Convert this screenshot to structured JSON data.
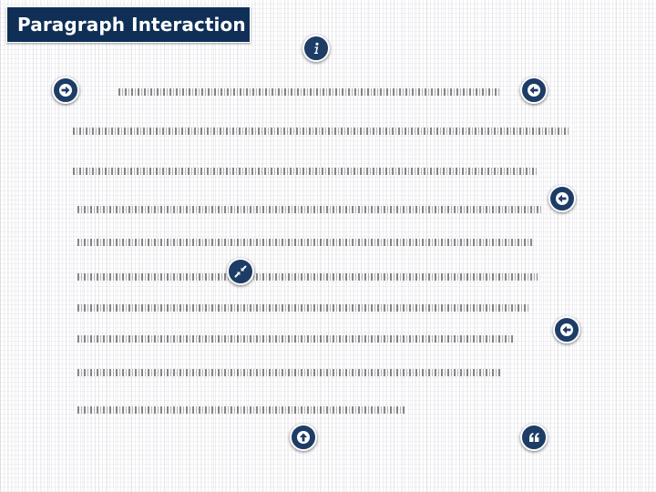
{
  "header": {
    "title": "Paragraph Interaction"
  },
  "icons": {
    "info": "info-icon",
    "forward": "arrow-right-icon",
    "back": "arrow-left-icon",
    "shrink": "shrink-icon",
    "up": "arrow-up-icon",
    "quote": "quote-icon"
  },
  "colors": {
    "title_background": "#0f2f57",
    "button_background": "#1d3c66",
    "button_border": "#ffffff",
    "background": "#ffffff"
  }
}
